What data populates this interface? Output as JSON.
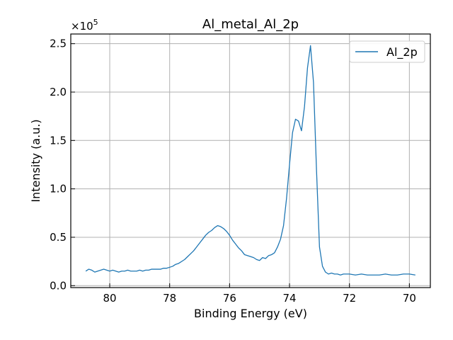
{
  "chart_data": {
    "type": "line",
    "title": "Al_metal_Al_2p",
    "xlabel": "Binding Energy (eV)",
    "ylabel": "Intensity (a.u.)",
    "y_multiplier": "×10⁵",
    "y_multiplier_base": "×10",
    "y_multiplier_exp": "5",
    "x_reversed": true,
    "xlim": [
      81.3,
      69.3
    ],
    "ylim": [
      -0.02,
      2.6
    ],
    "y_scale_factor": 100000,
    "grid": true,
    "legend_position": "top-right",
    "x_ticks": [
      80,
      78,
      76,
      74,
      72,
      70
    ],
    "x_tick_labels": [
      "80",
      "78",
      "76",
      "74",
      "72",
      "70"
    ],
    "y_ticks": [
      0.0,
      0.5,
      1.0,
      1.5,
      2.0,
      2.5
    ],
    "y_tick_labels": [
      "0.0",
      "0.5",
      "1.0",
      "1.5",
      "2.0",
      "2.5"
    ],
    "series": [
      {
        "name": "Al_2p",
        "color": "#1f77b4",
        "x": [
          80.8,
          80.7,
          80.6,
          80.5,
          80.4,
          80.3,
          80.2,
          80.1,
          80.0,
          79.9,
          79.8,
          79.7,
          79.6,
          79.5,
          79.4,
          79.3,
          79.2,
          79.1,
          79.0,
          78.9,
          78.8,
          78.7,
          78.6,
          78.5,
          78.4,
          78.3,
          78.2,
          78.1,
          78.0,
          77.9,
          77.8,
          77.7,
          77.6,
          77.5,
          77.4,
          77.3,
          77.2,
          77.1,
          77.0,
          76.9,
          76.8,
          76.7,
          76.6,
          76.5,
          76.4,
          76.3,
          76.2,
          76.1,
          76.0,
          75.9,
          75.8,
          75.7,
          75.6,
          75.5,
          75.4,
          75.3,
          75.2,
          75.1,
          75.0,
          74.9,
          74.8,
          74.7,
          74.6,
          74.5,
          74.4,
          74.3,
          74.2,
          74.1,
          74.0,
          73.9,
          73.8,
          73.7,
          73.6,
          73.5,
          73.4,
          73.3,
          73.2,
          73.1,
          73.0,
          72.9,
          72.8,
          72.7,
          72.6,
          72.5,
          72.4,
          72.3,
          72.2,
          72.1,
          72.0,
          71.8,
          71.6,
          71.4,
          71.2,
          71.0,
          70.8,
          70.6,
          70.4,
          70.2,
          70.0,
          69.8
        ],
        "values": [
          0.15,
          0.17,
          0.16,
          0.14,
          0.15,
          0.16,
          0.17,
          0.16,
          0.15,
          0.16,
          0.15,
          0.14,
          0.15,
          0.15,
          0.16,
          0.15,
          0.15,
          0.15,
          0.16,
          0.15,
          0.16,
          0.16,
          0.17,
          0.17,
          0.17,
          0.17,
          0.18,
          0.18,
          0.19,
          0.2,
          0.22,
          0.23,
          0.25,
          0.27,
          0.3,
          0.33,
          0.36,
          0.4,
          0.44,
          0.48,
          0.52,
          0.55,
          0.57,
          0.6,
          0.62,
          0.61,
          0.59,
          0.56,
          0.52,
          0.47,
          0.43,
          0.39,
          0.36,
          0.32,
          0.31,
          0.3,
          0.29,
          0.27,
          0.26,
          0.29,
          0.28,
          0.31,
          0.32,
          0.34,
          0.4,
          0.48,
          0.62,
          0.9,
          1.25,
          1.58,
          1.72,
          1.7,
          1.6,
          1.85,
          2.25,
          2.48,
          2.1,
          1.2,
          0.4,
          0.2,
          0.14,
          0.12,
          0.13,
          0.12,
          0.12,
          0.11,
          0.12,
          0.12,
          0.12,
          0.11,
          0.12,
          0.11,
          0.11,
          0.11,
          0.12,
          0.11,
          0.11,
          0.12,
          0.12,
          0.11
        ]
      }
    ]
  }
}
